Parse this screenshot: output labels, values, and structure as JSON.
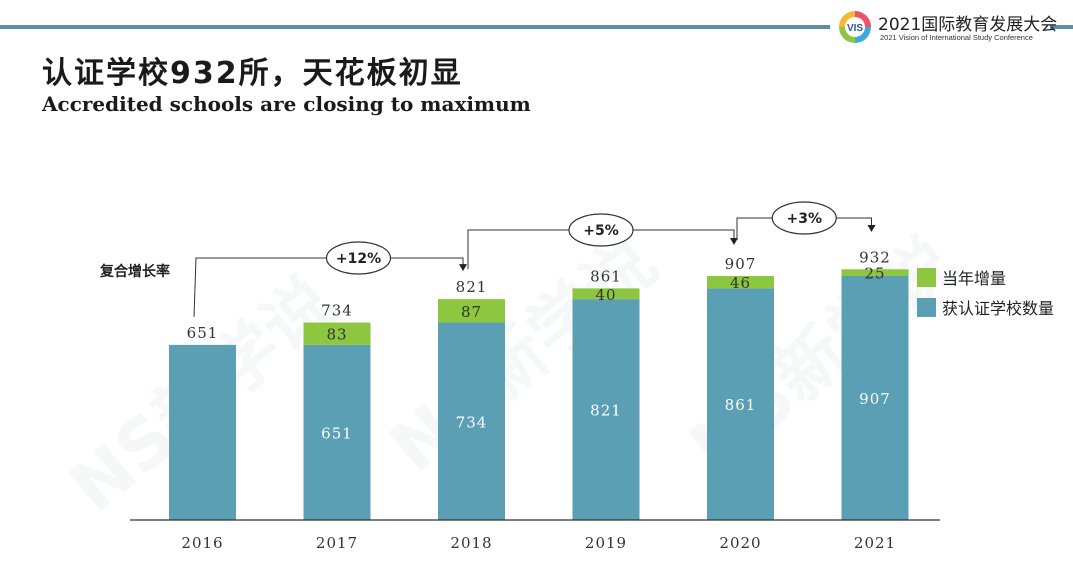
{
  "header": {
    "conference_title": "2021国际教育发展大会",
    "conference_subtitle": "2021 Vision of International Study Conference",
    "logo_text": "VIS"
  },
  "title_cn": "认证学校932所，天花板初显",
  "title_en": "Accredited schools are closing to maximum",
  "watermark": "NS新学说",
  "chart_data": {
    "type": "bar",
    "stacked": true,
    "categories": [
      "2016",
      "2017",
      "2018",
      "2019",
      "2020",
      "2021"
    ],
    "series": [
      {
        "name": "获认证学校数量",
        "values": [
          651,
          651,
          734,
          821,
          861,
          907
        ],
        "color": "#5b9fb4"
      },
      {
        "name": "当年增量",
        "values": [
          0,
          83,
          87,
          40,
          46,
          25
        ],
        "color": "#8dc63f"
      }
    ],
    "totals": [
      651,
      734,
      821,
      861,
      907,
      932
    ],
    "ylim": [
      0,
      1000
    ],
    "legend_position": "right",
    "cagr_label": "复合增长率",
    "growth_annotations": [
      {
        "label": "+12%",
        "from": "2016",
        "to": "2018"
      },
      {
        "label": "+5%",
        "from": "2018",
        "to": "2020"
      },
      {
        "label": "+3%",
        "from": "2020",
        "to": "2021"
      }
    ]
  }
}
